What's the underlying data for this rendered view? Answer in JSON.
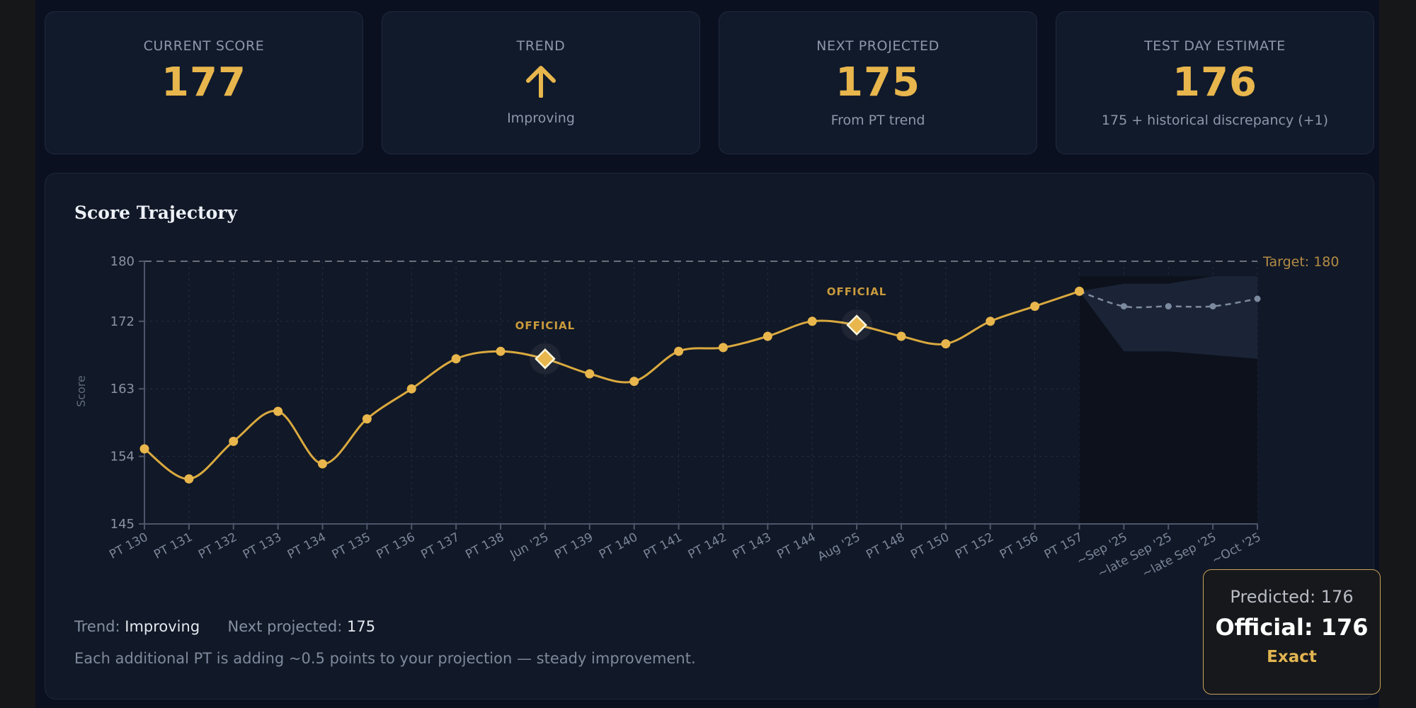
{
  "stats": {
    "current": {
      "label": "CURRENT SCORE",
      "value": "177"
    },
    "trend": {
      "label": "TREND",
      "icon": "arrow-up-icon",
      "text": "Improving"
    },
    "next": {
      "label": "NEXT PROJECTED",
      "value": "175",
      "sub": "From PT trend"
    },
    "test_day": {
      "label": "TEST DAY ESTIMATE",
      "value": "176",
      "sub": "175 + historical discrepancy (+1)"
    }
  },
  "panel": {
    "title": "Score Trajectory",
    "trend_label": "Trend:",
    "trend_value": "Improving",
    "next_label": "Next projected:",
    "next_value": "175",
    "note": "Each additional PT is adding ~0.5 points to your projection — steady improvement."
  },
  "tooltip": {
    "predicted": "Predicted: 176",
    "official": "Official: 176",
    "result": "Exact"
  },
  "colors": {
    "accent": "#e8b64c",
    "line": "#d9a93f",
    "projection": "#7c8aa0",
    "band": "#1c2638",
    "target": "#6a6f78"
  },
  "chart_data": {
    "type": "line",
    "ylabel": "Score",
    "ylim": [
      145,
      180
    ],
    "yticks": [
      145,
      154,
      163,
      172,
      180
    ],
    "target": {
      "value": 180,
      "label": "Target: 180"
    },
    "categories": [
      "PT 130",
      "PT 131",
      "PT 132",
      "PT 133",
      "PT 134",
      "PT 135",
      "PT 136",
      "PT 137",
      "PT 138",
      "Jun '25",
      "PT 139",
      "PT 140",
      "PT 141",
      "PT 142",
      "PT 143",
      "PT 144",
      "Aug '25",
      "PT 148",
      "PT 150",
      "PT 152",
      "PT 156",
      "PT 157",
      "~Sep '25",
      "~late Sep '25",
      "~late Sep '25",
      "~Oct '25"
    ],
    "series": [
      {
        "kind": "practice",
        "values": [
          155,
          151,
          156,
          160,
          153,
          159,
          163,
          167,
          168,
          167,
          165,
          164,
          168,
          168.5,
          170,
          172,
          171.5,
          170,
          169,
          172,
          174,
          176,
          null,
          null,
          null,
          null
        ]
      },
      {
        "kind": "projection",
        "values": [
          null,
          null,
          null,
          null,
          null,
          null,
          null,
          null,
          null,
          null,
          null,
          null,
          null,
          null,
          null,
          null,
          null,
          null,
          null,
          null,
          null,
          176,
          174,
          174,
          174,
          175
        ]
      }
    ],
    "projection_band": {
      "lower": [
        null,
        null,
        null,
        null,
        null,
        null,
        null,
        null,
        null,
        null,
        null,
        null,
        null,
        null,
        null,
        null,
        null,
        null,
        null,
        null,
        null,
        176,
        168,
        168,
        167.5,
        167
      ],
      "upper": [
        null,
        null,
        null,
        null,
        null,
        null,
        null,
        null,
        null,
        null,
        null,
        null,
        null,
        null,
        null,
        null,
        null,
        null,
        null,
        null,
        null,
        176,
        177,
        177,
        178,
        178
      ]
    },
    "official_scores": [
      {
        "category": "Jun '25",
        "value": 167,
        "label": "OFFICIAL"
      },
      {
        "category": "Aug '25",
        "value": 171.5,
        "label": "OFFICIAL"
      }
    ],
    "grid": true
  }
}
